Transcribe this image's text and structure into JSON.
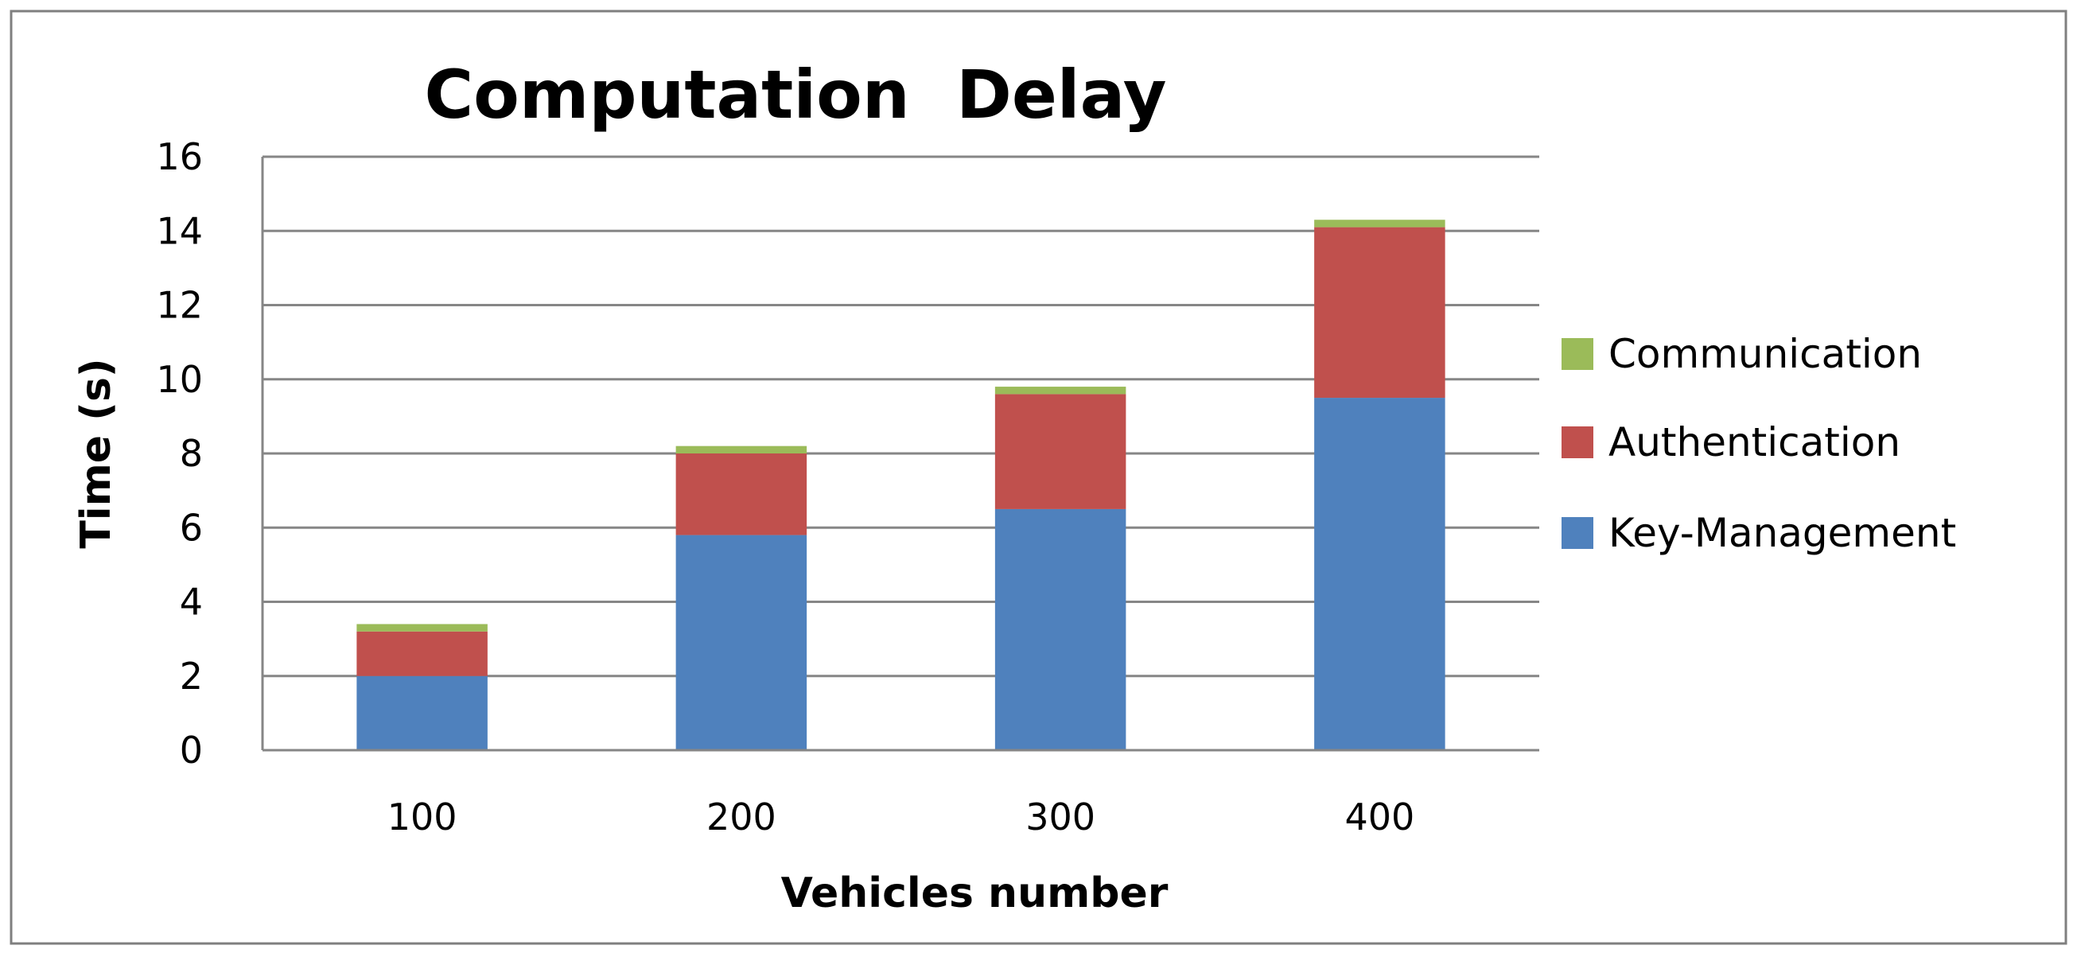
{
  "chart_data": {
    "type": "bar",
    "stacked": true,
    "title": "Computation  Delay",
    "xlabel": "Vehicles number",
    "ylabel": "Time (s)",
    "categories": [
      "100",
      "200",
      "300",
      "400"
    ],
    "ylim": [
      0,
      16
    ],
    "yticks": [
      0,
      2,
      4,
      6,
      8,
      10,
      12,
      14,
      16
    ],
    "grid": true,
    "legend_position": "right",
    "series": [
      {
        "name": "Key-Management",
        "color": "#4F81BD",
        "values": [
          2.0,
          5.8,
          6.5,
          9.5
        ]
      },
      {
        "name": "Authentication",
        "color": "#C0504D",
        "values": [
          1.2,
          2.2,
          3.1,
          4.6
        ]
      },
      {
        "name": "Communication",
        "color": "#9BBB59",
        "values": [
          0.2,
          0.2,
          0.2,
          0.2
        ]
      }
    ],
    "legend_order": [
      "Communication",
      "Authentication",
      "Key-Management"
    ]
  }
}
